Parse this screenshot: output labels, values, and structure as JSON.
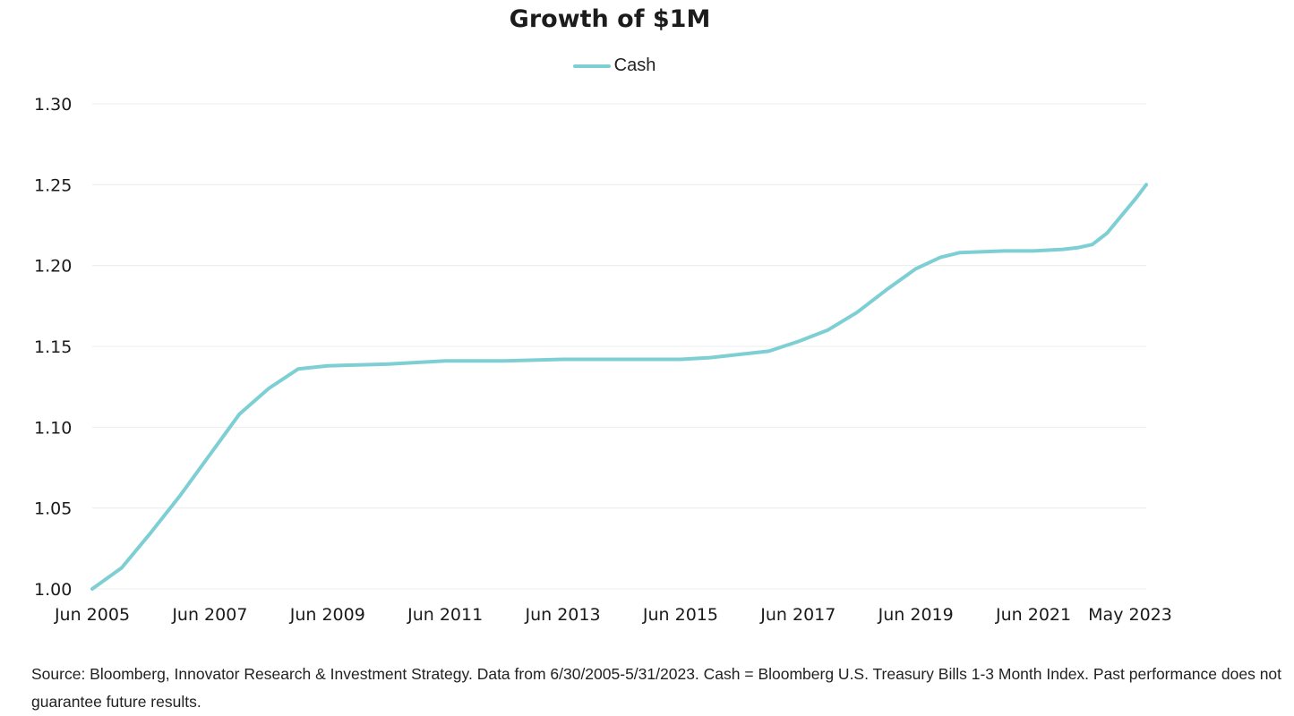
{
  "chart_data": {
    "type": "line",
    "title": "Growth of $1M",
    "xlabel": "",
    "ylabel": "",
    "ylim": [
      1.0,
      1.3
    ],
    "yticks": [
      "1.00",
      "1.05",
      "1.10",
      "1.15",
      "1.20",
      "1.25",
      "1.30"
    ],
    "xticks": [
      "Jun 2005",
      "Jun 2007",
      "Jun 2009",
      "Jun 2011",
      "Jun 2013",
      "Jun 2015",
      "Jun 2017",
      "Jun 2019",
      "Jun 2021",
      "May 2023"
    ],
    "xlim": [
      "2005-06",
      "2023-05"
    ],
    "grid": "horizontal",
    "legend_position": "top-center",
    "series": [
      {
        "name": "Cash",
        "color": "#7ecfd4",
        "points": [
          [
            "2005-06",
            1.0
          ],
          [
            "2005-12",
            1.013
          ],
          [
            "2006-06",
            1.035
          ],
          [
            "2006-12",
            1.058
          ],
          [
            "2007-06",
            1.083
          ],
          [
            "2007-12",
            1.108
          ],
          [
            "2008-06",
            1.124
          ],
          [
            "2008-12",
            1.136
          ],
          [
            "2009-06",
            1.138
          ],
          [
            "2010-06",
            1.139
          ],
          [
            "2011-06",
            1.141
          ],
          [
            "2012-06",
            1.141
          ],
          [
            "2013-06",
            1.142
          ],
          [
            "2014-06",
            1.142
          ],
          [
            "2015-06",
            1.142
          ],
          [
            "2015-12",
            1.143
          ],
          [
            "2016-06",
            1.145
          ],
          [
            "2016-12",
            1.147
          ],
          [
            "2017-06",
            1.153
          ],
          [
            "2017-12",
            1.16
          ],
          [
            "2018-06",
            1.171
          ],
          [
            "2018-12",
            1.185
          ],
          [
            "2019-06",
            1.198
          ],
          [
            "2019-11",
            1.205
          ],
          [
            "2020-03",
            1.208
          ],
          [
            "2020-12",
            1.209
          ],
          [
            "2021-06",
            1.209
          ],
          [
            "2021-12",
            1.21
          ],
          [
            "2022-03",
            1.211
          ],
          [
            "2022-06",
            1.213
          ],
          [
            "2022-09",
            1.22
          ],
          [
            "2022-12",
            1.231
          ],
          [
            "2023-03",
            1.242
          ],
          [
            "2023-05",
            1.25
          ]
        ]
      }
    ]
  },
  "footnote": "Source: Bloomberg, Innovator Research & Investment Strategy. Data from 6/30/2005-5/31/2023. Cash = Bloomberg U.S. Treasury Bills 1-3 Month Index. Past performance does not guarantee future results."
}
